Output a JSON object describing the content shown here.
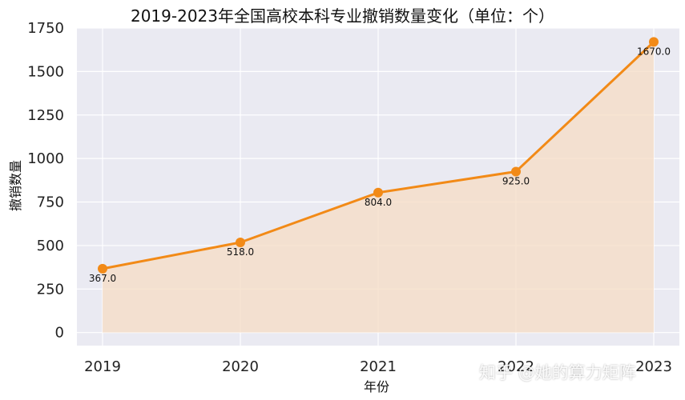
{
  "chart_data": {
    "type": "line",
    "title": "2019-2023年全国高校本科专业撤销数量变化（单位：个）",
    "xlabel": "年份",
    "ylabel": "撤销数量",
    "x": [
      "2019",
      "2020",
      "2021",
      "2022",
      "2023"
    ],
    "series": [
      {
        "values": [
          367,
          518,
          804,
          925,
          1670
        ]
      }
    ],
    "data_labels": [
      "367.0",
      "518.0",
      "804.0",
      "925.0",
      "1670.0"
    ],
    "yticks": [
      0,
      250,
      500,
      750,
      1000,
      1250,
      1500,
      1750
    ],
    "ylim": [
      -75,
      1750
    ],
    "grid": true,
    "area_fill": true,
    "colors": {
      "line": "#f28a17",
      "fill": "#f5dcc4",
      "plot_background": "#eaeaf2",
      "grid": "#ffffff"
    }
  },
  "watermark": "知乎 @她的算力矩阵"
}
